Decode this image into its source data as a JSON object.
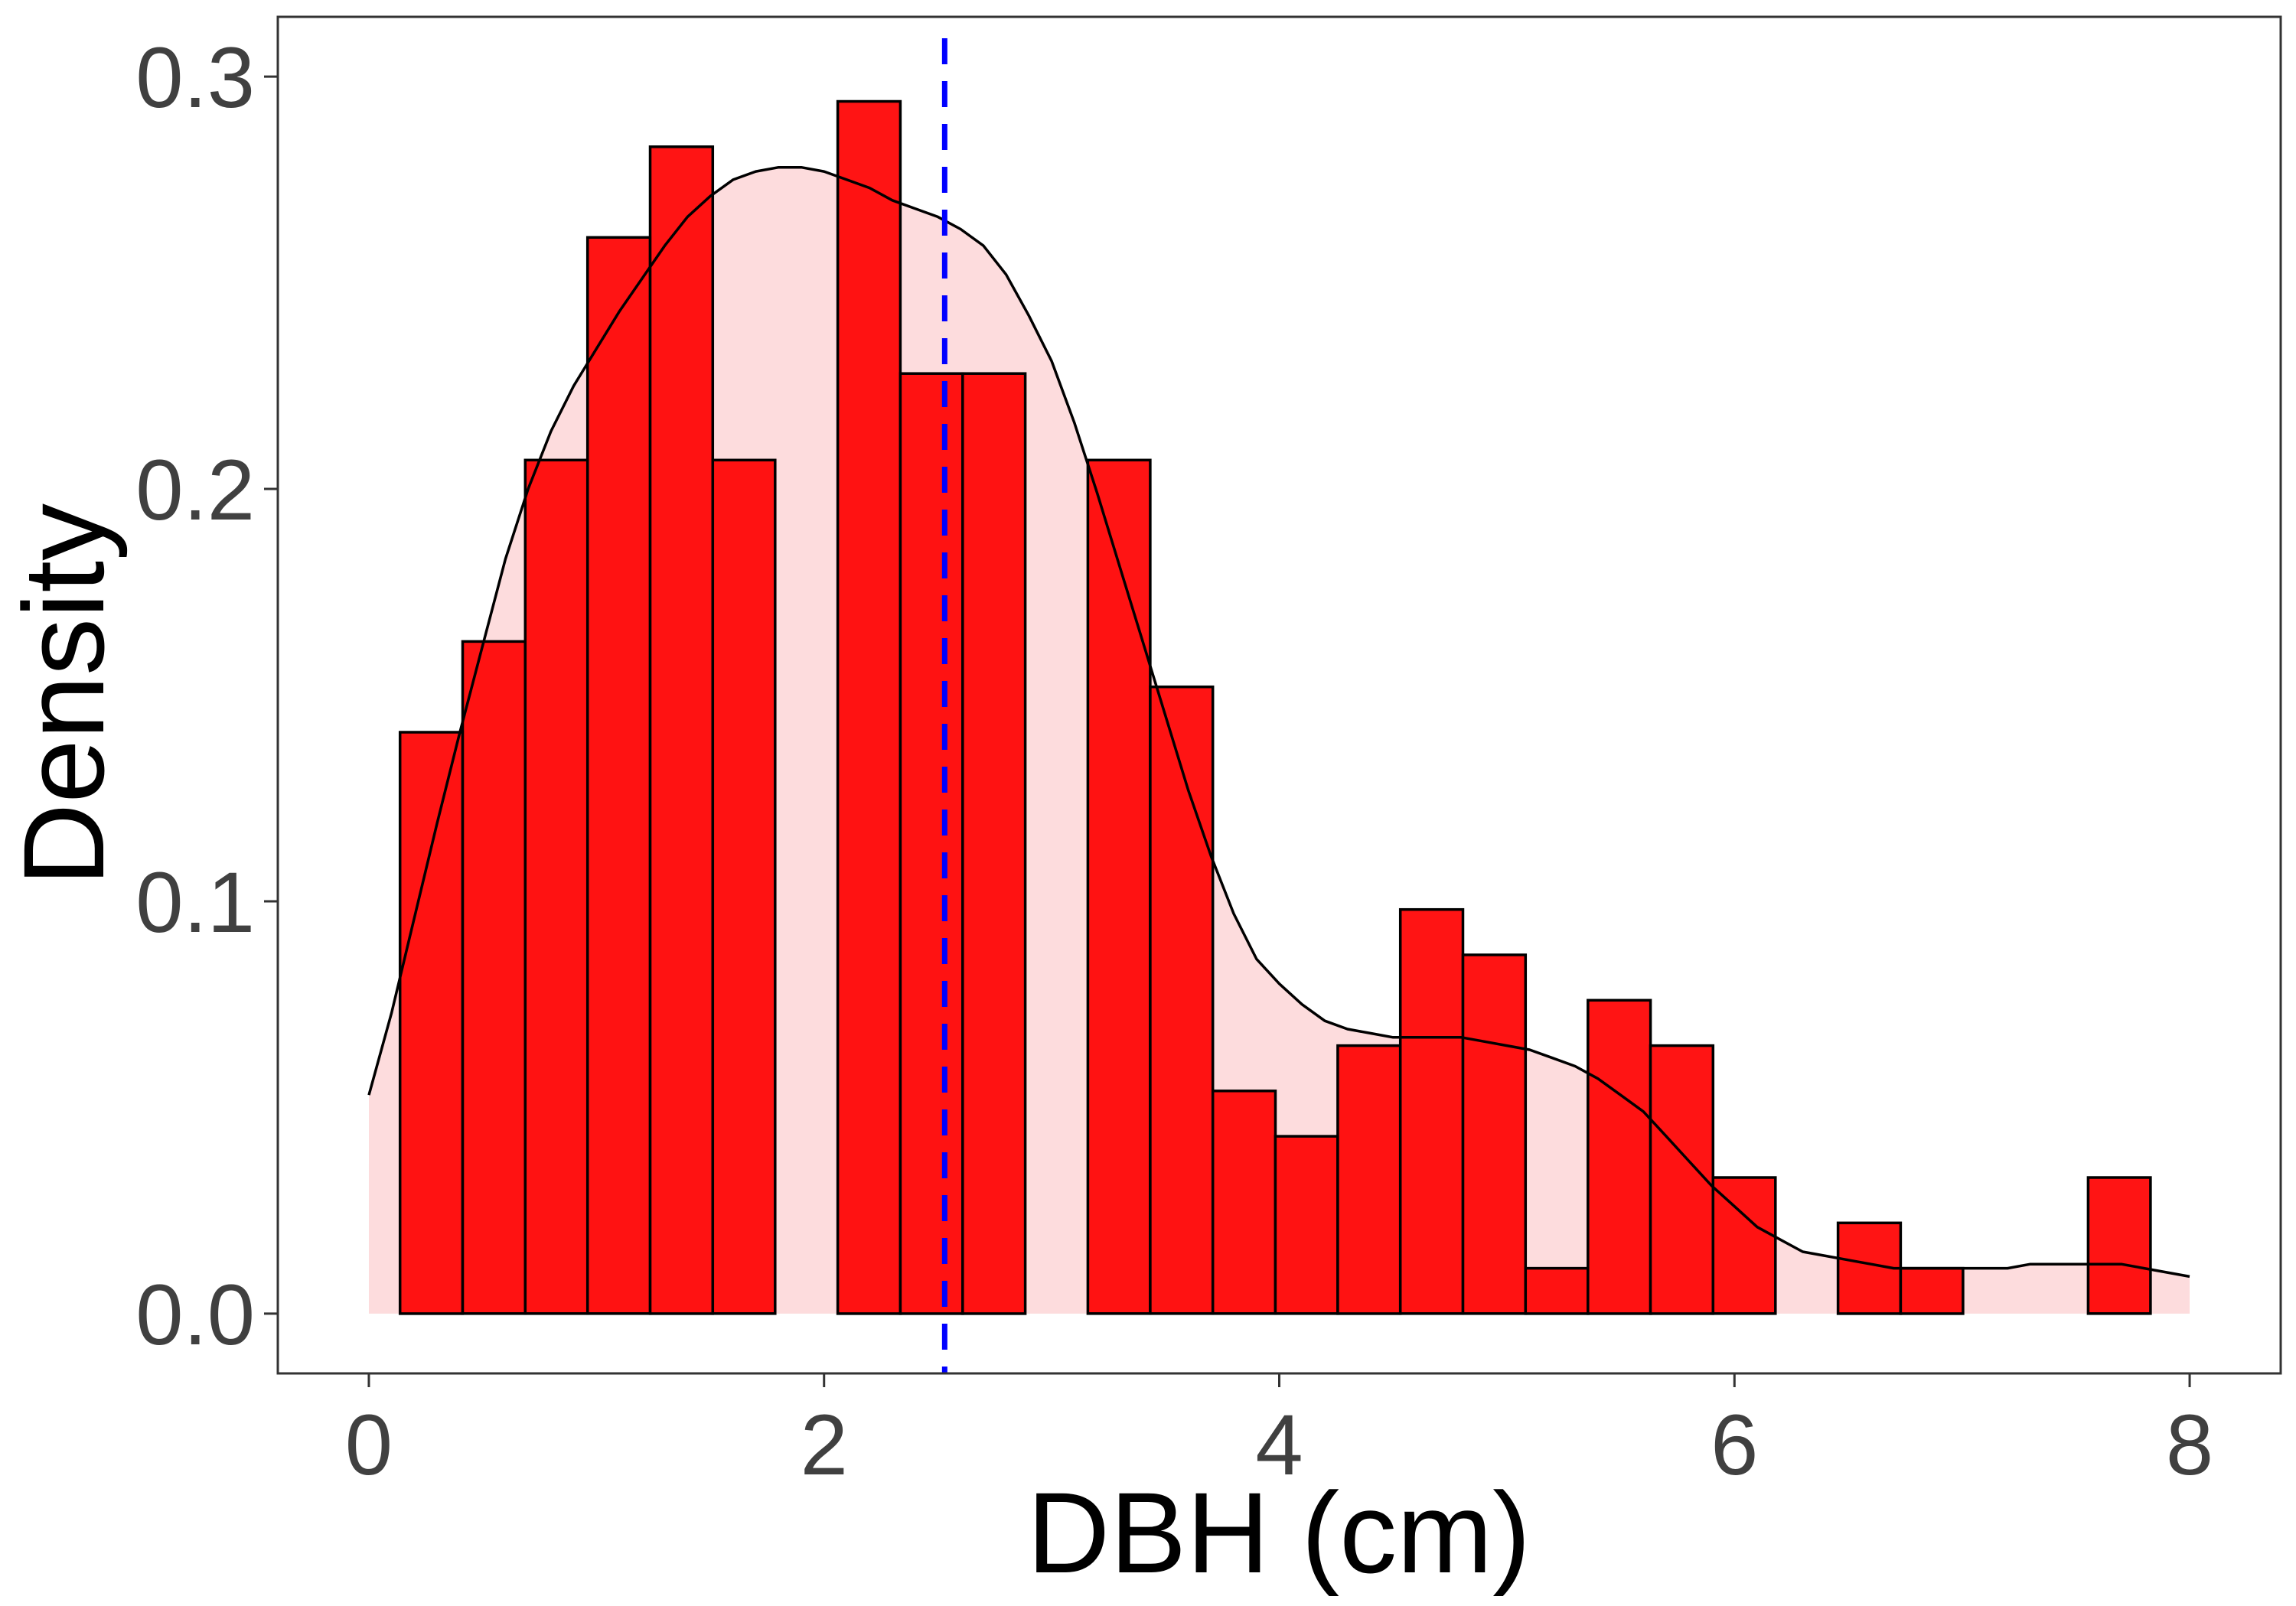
{
  "chart_data": {
    "type": "bar",
    "title": "",
    "xlabel": "DBH (cm)",
    "ylabel": "Density",
    "xlim": [
      -0.4,
      8.4
    ],
    "ylim": [
      -0.0145,
      0.3145
    ],
    "x_ticks": [
      0,
      2,
      4,
      6,
      8
    ],
    "x_tick_labels": [
      "0",
      "2",
      "4",
      "6",
      "8"
    ],
    "y_ticks": [
      0.0,
      0.1,
      0.2,
      0.3
    ],
    "y_tick_labels": [
      "0.0",
      "0.1",
      "0.2",
      "0.3"
    ],
    "grid": false,
    "legend": "none",
    "histogram": {
      "bin_width": 0.2747,
      "bins": [
        {
          "x0": 0.137,
          "x1": 0.412,
          "density": 0.141
        },
        {
          "x0": 0.412,
          "x1": 0.687,
          "density": 0.163
        },
        {
          "x0": 0.687,
          "x1": 0.961,
          "density": 0.207
        },
        {
          "x0": 0.961,
          "x1": 1.236,
          "density": 0.261
        },
        {
          "x0": 1.236,
          "x1": 1.511,
          "density": 0.283
        },
        {
          "x0": 1.511,
          "x1": 1.785,
          "density": 0.207
        },
        {
          "x0": 1.785,
          "x1": 2.06,
          "density": 0.0
        },
        {
          "x0": 2.06,
          "x1": 2.335,
          "density": 0.294
        },
        {
          "x0": 2.335,
          "x1": 2.609,
          "density": 0.228
        },
        {
          "x0": 2.609,
          "x1": 2.884,
          "density": 0.228
        },
        {
          "x0": 2.884,
          "x1": 3.159,
          "density": 0.0
        },
        {
          "x0": 3.159,
          "x1": 3.433,
          "density": 0.207
        },
        {
          "x0": 3.433,
          "x1": 3.708,
          "density": 0.152
        },
        {
          "x0": 3.708,
          "x1": 3.983,
          "density": 0.054
        },
        {
          "x0": 3.983,
          "x1": 4.257,
          "density": 0.043
        },
        {
          "x0": 4.257,
          "x1": 4.532,
          "density": 0.065
        },
        {
          "x0": 4.532,
          "x1": 4.807,
          "density": 0.098
        },
        {
          "x0": 4.807,
          "x1": 5.082,
          "density": 0.087
        },
        {
          "x0": 5.082,
          "x1": 5.356,
          "density": 0.011
        },
        {
          "x0": 5.356,
          "x1": 5.631,
          "density": 0.076
        },
        {
          "x0": 5.631,
          "x1": 5.906,
          "density": 0.065
        },
        {
          "x0": 5.906,
          "x1": 6.18,
          "density": 0.033
        },
        {
          "x0": 6.18,
          "x1": 6.455,
          "density": 0.0
        },
        {
          "x0": 6.455,
          "x1": 6.73,
          "density": 0.022
        },
        {
          "x0": 6.73,
          "x1": 7.004,
          "density": 0.011
        },
        {
          "x0": 7.004,
          "x1": 7.279,
          "density": 0.0
        },
        {
          "x0": 7.279,
          "x1": 7.554,
          "density": 0.0
        },
        {
          "x0": 7.554,
          "x1": 7.828,
          "density": 0.033
        }
      ],
      "fill_color": "#ff0000",
      "fill_opacity": 0.92,
      "outline_color": "#000000"
    },
    "density_curve": {
      "x": [
        0.0,
        0.1,
        0.2,
        0.3,
        0.4,
        0.5,
        0.6,
        0.7,
        0.8,
        0.9,
        1.0,
        1.1,
        1.2,
        1.3,
        1.4,
        1.5,
        1.6,
        1.7,
        1.8,
        1.9,
        2.0,
        2.1,
        2.2,
        2.3,
        2.4,
        2.5,
        2.6,
        2.7,
        2.8,
        2.9,
        3.0,
        3.1,
        3.2,
        3.3,
        3.4,
        3.5,
        3.6,
        3.7,
        3.8,
        3.9,
        4.0,
        4.1,
        4.2,
        4.3,
        4.4,
        4.5,
        4.6,
        4.7,
        4.8,
        4.9,
        5.0,
        5.1,
        5.2,
        5.3,
        5.4,
        5.5,
        5.6,
        5.7,
        5.8,
        5.9,
        6.0,
        6.1,
        6.2,
        6.3,
        6.4,
        6.5,
        6.6,
        6.7,
        6.8,
        6.9,
        7.0,
        7.1,
        7.2,
        7.3,
        7.4,
        7.5,
        7.6,
        7.7,
        7.8,
        7.9,
        8.0
      ],
      "y": [
        0.053,
        0.073,
        0.096,
        0.119,
        0.141,
        0.162,
        0.183,
        0.2,
        0.214,
        0.225,
        0.234,
        0.243,
        0.251,
        0.259,
        0.266,
        0.271,
        0.275,
        0.277,
        0.278,
        0.278,
        0.277,
        0.275,
        0.273,
        0.27,
        0.268,
        0.266,
        0.263,
        0.259,
        0.252,
        0.242,
        0.231,
        0.216,
        0.199,
        0.181,
        0.163,
        0.145,
        0.127,
        0.111,
        0.097,
        0.086,
        0.08,
        0.075,
        0.071,
        0.069,
        0.068,
        0.067,
        0.067,
        0.067,
        0.067,
        0.066,
        0.065,
        0.064,
        0.062,
        0.06,
        0.057,
        0.053,
        0.049,
        0.043,
        0.037,
        0.031,
        0.026,
        0.021,
        0.018,
        0.015,
        0.014,
        0.013,
        0.012,
        0.011,
        0.011,
        0.011,
        0.011,
        0.011,
        0.011,
        0.012,
        0.012,
        0.012,
        0.012,
        0.012,
        0.011,
        0.01,
        0.009
      ],
      "line_color": "#000000",
      "fill_color": "#fddcdd"
    },
    "mean_line": {
      "x": 2.53,
      "color": "#0000ff",
      "style": "dashed"
    }
  }
}
